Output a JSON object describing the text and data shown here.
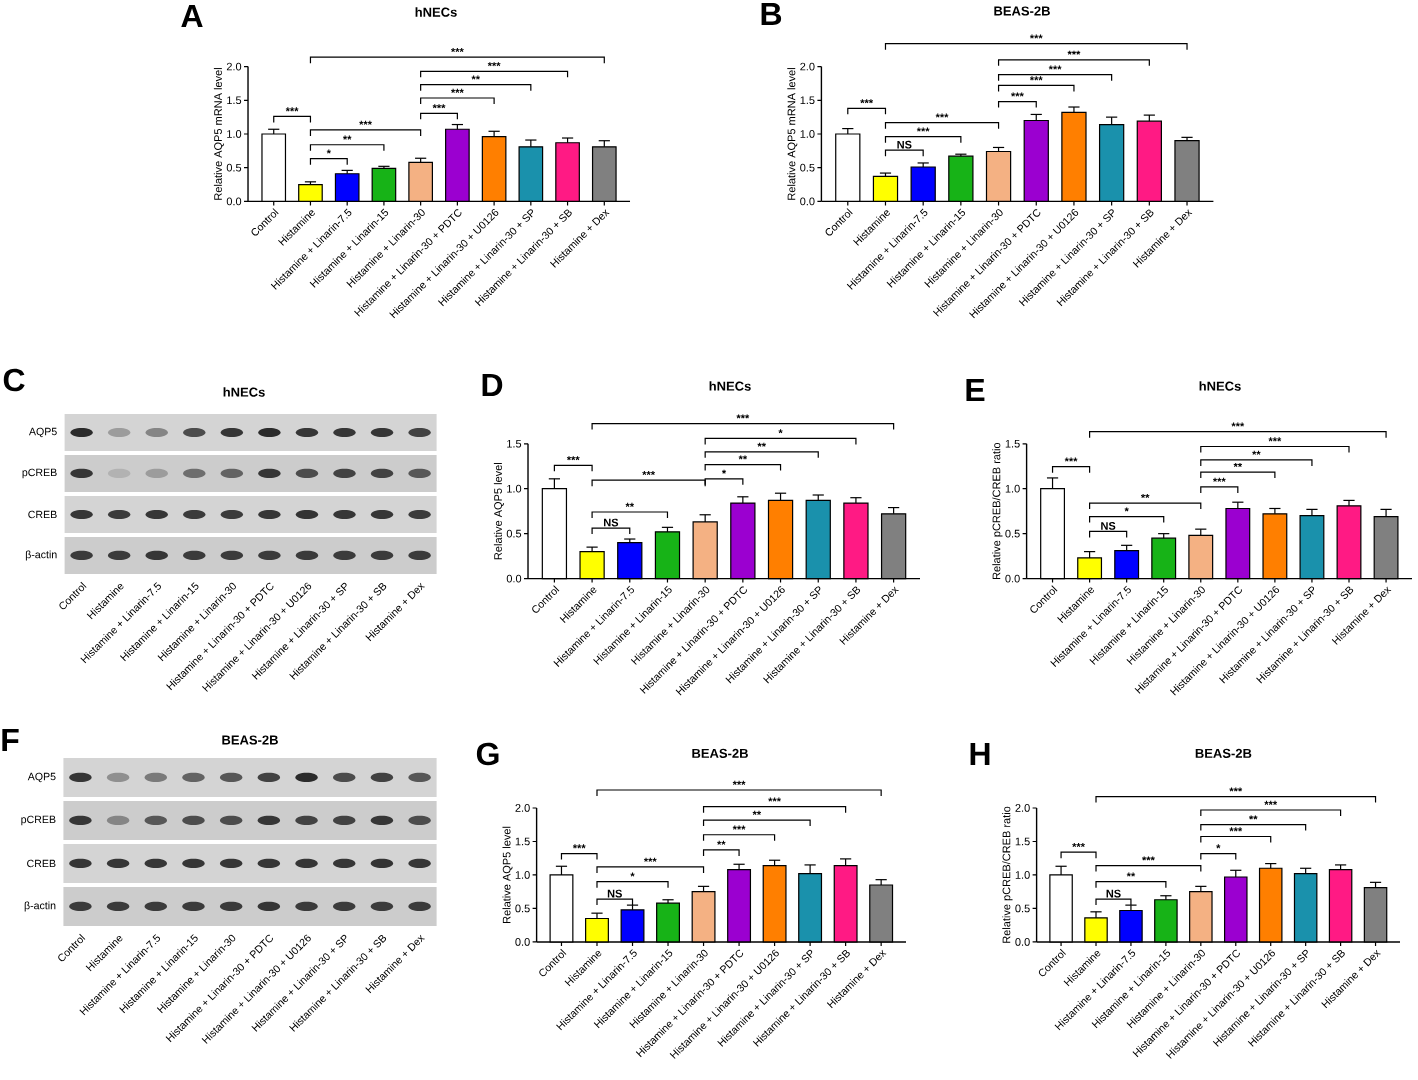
{
  "chart_data": [
    {
      "type": "bar",
      "title": "hNECs",
      "ylabel": "Relative AQP5 mRNA level",
      "categories": [
        "Control",
        "Histamine",
        "Histamine + Linarin-7.5",
        "Histamine + Linarin-15",
        "Histamine + Linarin-30",
        "Histamine + Linarin-30 + PDTC",
        "Histamine + Linarin-30 + U0126",
        "Histamine + Linarin-30 + SP",
        "Histamine + Linarin-30 + SB",
        "Histamine + Dex"
      ],
      "values": [
        1.0,
        0.25,
        0.41,
        0.49,
        0.58,
        1.07,
        0.96,
        0.81,
        0.87,
        0.81
      ],
      "errors": [
        [
          1.0,
          1.07
        ],
        [
          0.25,
          0.29
        ],
        [
          0.41,
          0.46
        ],
        [
          0.49,
          0.52
        ],
        [
          0.58,
          0.64
        ],
        [
          1.07,
          1.14
        ],
        [
          0.96,
          1.04
        ],
        [
          0.81,
          0.91
        ],
        [
          0.87,
          0.94
        ],
        [
          0.81,
          0.9
        ]
      ],
      "colors": [
        "#ffffff",
        "#ffff00",
        "#0000ff",
        "#17b317",
        "#f4b183",
        "#9b00d0",
        "#ff7f00",
        "#1a91ac",
        "#ff1a84",
        "#808080"
      ],
      "ylim": [
        0,
        2
      ],
      "yticks": [
        {
          "value": 0,
          "label": "0.0"
        },
        {
          "value": 0.5,
          "label": "0.5"
        },
        {
          "value": 1,
          "label": "1.0"
        },
        {
          "value": 1.5,
          "label": "1.5"
        },
        {
          "value": 2,
          "label": "2.0"
        }
      ],
      "annotations": [
        "A",
        "***",
        "*",
        "**",
        "***",
        "***",
        "***",
        "**",
        "***",
        "***"
      ]
    },
    {
      "type": "bar",
      "title": "BEAS-2B",
      "ylabel": "Relative AQP5 mRNA level",
      "categories": [
        "Control",
        "Histamine",
        "Histamine + Linarin-7.5",
        "Histamine + Linarin-15",
        "Histamine + Linarin-30",
        "Histamine + Linarin-30 + PDTC",
        "Histamine + Linarin-30 + U0126",
        "Histamine + Linarin-30 + SP",
        "Histamine + Linarin-30 + SB",
        "Histamine + Dex"
      ],
      "values": [
        1.0,
        0.37,
        0.51,
        0.67,
        0.74,
        1.2,
        1.32,
        1.14,
        1.19,
        0.9
      ],
      "errors": [
        [
          1.0,
          1.08
        ],
        [
          0.37,
          0.42
        ],
        [
          0.51,
          0.57
        ],
        [
          0.67,
          0.7
        ],
        [
          0.74,
          0.8
        ],
        [
          1.2,
          1.29
        ],
        [
          1.32,
          1.4
        ],
        [
          1.14,
          1.25
        ],
        [
          1.19,
          1.28
        ],
        [
          0.9,
          0.95
        ]
      ],
      "colors": [
        "#ffffff",
        "#ffff00",
        "#0000ff",
        "#17b317",
        "#f4b183",
        "#9b00d0",
        "#ff7f00",
        "#1a91ac",
        "#ff1a84",
        "#808080"
      ],
      "ylim": [
        0,
        2
      ],
      "yticks": [
        {
          "value": 0,
          "label": "0.0"
        },
        {
          "value": 0.5,
          "label": "0.5"
        },
        {
          "value": 1,
          "label": "1.0"
        },
        {
          "value": 1.5,
          "label": "1.5"
        },
        {
          "value": 2,
          "label": "2.0"
        }
      ],
      "annotations": [
        "B",
        "***",
        "NS",
        "***",
        "***",
        "***",
        "***",
        "***",
        "***",
        "***"
      ]
    },
    {
      "type": "other",
      "title": "hNECs",
      "categories": [
        "Control",
        "Histamine",
        "Histamine + Linarin-7.5",
        "Histamine + Linarin-15",
        "Histamine + Linarin-30",
        "Histamine + Linarin-30 + PDTC",
        "Histamine + Linarin-30 + U0126",
        "Histamine + Linarin-30 + SP",
        "Histamine + Linarin-30 + SB",
        "Histamine + Dex"
      ],
      "annotations": [
        "C",
        "AQP5",
        "pCREB",
        "CREB",
        "β-actin"
      ]
    },
    {
      "type": "bar",
      "title": "hNECs",
      "ylabel": "Relative AQP5 level",
      "categories": [
        "Control",
        "Histamine",
        "Histamine + Linarin-7.5",
        "Histamine + Linarin-15",
        "Histamine + Linarin-30",
        "Histamine + Linarin-30 + PDTC",
        "Histamine + Linarin-30 + U0126",
        "Histamine + Linarin-30 + SP",
        "Histamine + Linarin-30 + SB",
        "Histamine + Dex"
      ],
      "values": [
        1.0,
        0.3,
        0.4,
        0.52,
        0.63,
        0.84,
        0.87,
        0.87,
        0.84,
        0.72
      ],
      "errors": [
        [
          1.0,
          1.11
        ],
        [
          0.3,
          0.35
        ],
        [
          0.4,
          0.44
        ],
        [
          0.52,
          0.57
        ],
        [
          0.63,
          0.71
        ],
        [
          0.84,
          0.91
        ],
        [
          0.87,
          0.95
        ],
        [
          0.87,
          0.93
        ],
        [
          0.84,
          0.9
        ],
        [
          0.72,
          0.79
        ]
      ],
      "colors": [
        "#ffffff",
        "#ffff00",
        "#0000ff",
        "#17b317",
        "#f4b183",
        "#9b00d0",
        "#ff7f00",
        "#1a91ac",
        "#ff1a84",
        "#808080"
      ],
      "ylim": [
        0,
        1.5
      ],
      "yticks": [
        {
          "value": 0,
          "label": "0.0"
        },
        {
          "value": 0.5,
          "label": "0.5"
        },
        {
          "value": 1,
          "label": "1.0"
        },
        {
          "value": 1.5,
          "label": "1.5"
        }
      ],
      "annotations": [
        "D",
        "***",
        "NS",
        "**",
        "***",
        "*",
        "**",
        "**",
        "*",
        "***"
      ]
    },
    {
      "type": "bar",
      "title": "hNECs",
      "ylabel": "Relative pCREB/CREB ratio",
      "categories": [
        "Control",
        "Histamine",
        "Histamine + Linarin-7.5",
        "Histamine + Linarin-15",
        "Histamine + Linarin-30",
        "Histamine + Linarin-30 + PDTC",
        "Histamine + Linarin-30 + U0126",
        "Histamine + Linarin-30 + SP",
        "Histamine + Linarin-30 + SB",
        "Histamine + Dex"
      ],
      "values": [
        1.0,
        0.23,
        0.31,
        0.45,
        0.48,
        0.78,
        0.72,
        0.7,
        0.81,
        0.69
      ],
      "errors": [
        [
          1.0,
          1.12
        ],
        [
          0.23,
          0.3
        ],
        [
          0.31,
          0.37
        ],
        [
          0.45,
          0.5
        ],
        [
          0.48,
          0.55
        ],
        [
          0.78,
          0.85
        ],
        [
          0.72,
          0.78
        ],
        [
          0.7,
          0.77
        ],
        [
          0.81,
          0.87
        ],
        [
          0.69,
          0.77
        ]
      ],
      "colors": [
        "#ffffff",
        "#ffff00",
        "#0000ff",
        "#17b317",
        "#f4b183",
        "#9b00d0",
        "#ff7f00",
        "#1a91ac",
        "#ff1a84",
        "#808080"
      ],
      "ylim": [
        0,
        1.5
      ],
      "yticks": [
        {
          "value": 0,
          "label": "0.0"
        },
        {
          "value": 0.5,
          "label": "0.5"
        },
        {
          "value": 1,
          "label": "1.0"
        },
        {
          "value": 1.5,
          "label": "1.5"
        }
      ],
      "annotations": [
        "E",
        "***",
        "NS",
        "*",
        "**",
        "***",
        "**",
        "**",
        "***",
        "***"
      ]
    },
    {
      "type": "other",
      "title": "BEAS-2B",
      "categories": [
        "Control",
        "Histamine",
        "Histamine + Linarin-7.5",
        "Histamine + Linarin-15",
        "Histamine + Linarin-30",
        "Histamine + Linarin-30 + PDTC",
        "Histamine + Linarin-30 + U0126",
        "Histamine + Linarin-30 + SP",
        "Histamine + Linarin-30 + SB",
        "Histamine + Dex"
      ],
      "annotations": [
        "F",
        "AQP5",
        "pCREB",
        "CREB",
        "β-actin"
      ]
    },
    {
      "type": "bar",
      "title": "BEAS-2B",
      "ylabel": "Relative AQP5 level",
      "categories": [
        "Control",
        "Histamine",
        "Histamine + Linarin-7.5",
        "Histamine + Linarin-15",
        "Histamine + Linarin-30",
        "Histamine + Linarin-30 + PDTC",
        "Histamine + Linarin-30 + U0126",
        "Histamine + Linarin-30 + SP",
        "Histamine + Linarin-30 + SB",
        "Histamine + Dex"
      ],
      "values": [
        1.0,
        0.35,
        0.48,
        0.58,
        0.75,
        1.08,
        1.14,
        1.02,
        1.14,
        0.85
      ],
      "errors": [
        [
          1.0,
          1.13
        ],
        [
          0.35,
          0.43
        ],
        [
          0.48,
          0.55
        ],
        [
          0.58,
          0.63
        ],
        [
          0.75,
          0.83
        ],
        [
          1.08,
          1.16
        ],
        [
          1.14,
          1.22
        ],
        [
          1.02,
          1.15
        ],
        [
          1.14,
          1.24
        ],
        [
          0.85,
          0.93
        ]
      ],
      "colors": [
        "#ffffff",
        "#ffff00",
        "#0000ff",
        "#17b317",
        "#f4b183",
        "#9b00d0",
        "#ff7f00",
        "#1a91ac",
        "#ff1a84",
        "#808080"
      ],
      "ylim": [
        0,
        2
      ],
      "yticks": [
        {
          "value": 0,
          "label": "0.0"
        },
        {
          "value": 0.5,
          "label": "0.5"
        },
        {
          "value": 1,
          "label": "1.0"
        },
        {
          "value": 1.5,
          "label": "1.5"
        },
        {
          "value": 2,
          "label": "2.0"
        }
      ],
      "annotations": [
        "G",
        "***",
        "NS",
        "*",
        "***",
        "**",
        "***",
        "**",
        "***",
        "***"
      ]
    },
    {
      "type": "bar",
      "title": "BEAS-2B",
      "ylabel": "Relative pCREB/CREB ratio",
      "categories": [
        "Control",
        "Histamine",
        "Histamine + Linarin-7.5",
        "Histamine + Linarin-15",
        "Histamine + Linarin-30",
        "Histamine + Linarin-30 + PDTC",
        "Histamine + Linarin-30 + U0126",
        "Histamine + Linarin-30 + SP",
        "Histamine + Linarin-30 + SB",
        "Histamine + Dex"
      ],
      "values": [
        1.0,
        0.36,
        0.47,
        0.63,
        0.75,
        0.97,
        1.1,
        1.02,
        1.08,
        0.81
      ],
      "errors": [
        [
          1.0,
          1.13
        ],
        [
          0.36,
          0.45
        ],
        [
          0.47,
          0.55
        ],
        [
          0.63,
          0.69
        ],
        [
          0.75,
          0.83
        ],
        [
          0.97,
          1.07
        ],
        [
          1.1,
          1.17
        ],
        [
          1.02,
          1.1
        ],
        [
          1.08,
          1.15
        ],
        [
          0.81,
          0.89
        ]
      ],
      "colors": [
        "#ffffff",
        "#ffff00",
        "#0000ff",
        "#17b317",
        "#f4b183",
        "#9b00d0",
        "#ff7f00",
        "#1a91ac",
        "#ff1a84",
        "#808080"
      ],
      "ylim": [
        0,
        2
      ],
      "yticks": [
        {
          "value": 0,
          "label": "0.0"
        },
        {
          "value": 0.5,
          "label": "0.5"
        },
        {
          "value": 1,
          "label": "1.0"
        },
        {
          "value": 1.5,
          "label": "1.5"
        },
        {
          "value": 2,
          "label": "2.0"
        }
      ],
      "annotations": [
        "H",
        "***",
        "NS",
        "**",
        "***",
        "*",
        "***",
        "**",
        "***",
        "***"
      ]
    }
  ]
}
